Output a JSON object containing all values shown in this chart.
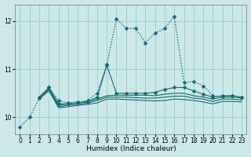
{
  "xlabel": "Humidex (Indice chaleur)",
  "bg_color": "#cce8e8",
  "grid_color": "#99cccc",
  "line_color": "#1a6b6b",
  "xlim": [
    -0.5,
    23.5
  ],
  "ylim": [
    9.65,
    12.35
  ],
  "yticks": [
    10,
    11,
    12
  ],
  "xticks": [
    0,
    1,
    2,
    3,
    4,
    5,
    6,
    7,
    8,
    9,
    10,
    11,
    12,
    13,
    14,
    15,
    16,
    17,
    18,
    19,
    20,
    21,
    22,
    23
  ],
  "lines": [
    {
      "x": [
        0,
        1,
        2,
        3,
        4,
        5,
        6,
        7,
        8,
        9,
        10,
        11,
        12,
        13,
        14,
        15,
        16,
        17,
        18,
        19,
        20,
        21,
        22,
        23
      ],
      "y": [
        9.8,
        10.0,
        10.4,
        10.62,
        10.35,
        10.3,
        10.32,
        10.35,
        10.5,
        11.1,
        12.05,
        11.85,
        11.85,
        11.55,
        11.75,
        11.85,
        12.1,
        10.72,
        10.75,
        10.65,
        10.45,
        10.43,
        10.45,
        10.42
      ],
      "style": "dotted",
      "marker": "D",
      "markersize": 2.5
    },
    {
      "x": [
        2,
        3,
        4,
        5,
        6,
        7,
        8,
        9,
        10,
        11,
        12,
        13,
        14,
        15,
        16,
        17,
        18,
        19,
        20,
        21,
        22,
        23
      ],
      "y": [
        10.42,
        10.62,
        10.28,
        10.28,
        10.3,
        10.32,
        10.42,
        11.08,
        10.5,
        10.5,
        10.5,
        10.5,
        10.52,
        10.58,
        10.62,
        10.62,
        10.55,
        10.48,
        10.42,
        10.45,
        10.45,
        10.42
      ],
      "style": "solid",
      "marker": "D",
      "markersize": 2.5
    },
    {
      "x": [
        2,
        3,
        4,
        5,
        6,
        7,
        8,
        9,
        10,
        11,
        12,
        13,
        14,
        15,
        16,
        17,
        18,
        19,
        20,
        21,
        22,
        23
      ],
      "y": [
        10.42,
        10.6,
        10.25,
        10.28,
        10.3,
        10.33,
        10.38,
        10.45,
        10.46,
        10.46,
        10.46,
        10.46,
        10.45,
        10.48,
        10.5,
        10.5,
        10.45,
        10.42,
        10.38,
        10.42,
        10.42,
        10.4
      ],
      "style": "solid",
      "marker": null,
      "markersize": 0
    },
    {
      "x": [
        2,
        3,
        4,
        5,
        6,
        7,
        8,
        9,
        10,
        11,
        12,
        13,
        14,
        15,
        16,
        17,
        18,
        19,
        20,
        21,
        22,
        23
      ],
      "y": [
        10.4,
        10.58,
        10.22,
        10.25,
        10.27,
        10.3,
        10.35,
        10.42,
        10.42,
        10.42,
        10.41,
        10.4,
        10.4,
        10.42,
        10.44,
        10.44,
        10.4,
        10.38,
        10.33,
        10.38,
        10.38,
        10.36
      ],
      "style": "solid",
      "marker": null,
      "markersize": 0
    },
    {
      "x": [
        2,
        3,
        4,
        5,
        6,
        7,
        8,
        9,
        10,
        11,
        12,
        13,
        14,
        15,
        16,
        17,
        18,
        19,
        20,
        21,
        22,
        23
      ],
      "y": [
        10.38,
        10.55,
        10.2,
        10.22,
        10.25,
        10.27,
        10.3,
        10.38,
        10.38,
        10.37,
        10.36,
        10.35,
        10.34,
        10.35,
        10.38,
        10.37,
        10.35,
        10.32,
        10.28,
        10.33,
        10.33,
        10.32
      ],
      "style": "solid",
      "marker": null,
      "markersize": 0
    }
  ]
}
